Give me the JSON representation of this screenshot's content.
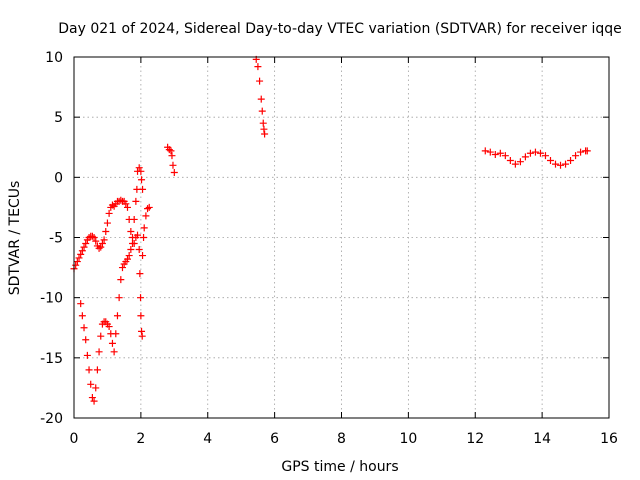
{
  "chart_data": {
    "type": "scatter",
    "title": "Day 021 of 2024, Sidereal Day-to-day VTEC variation (SDTVAR) for receiver iqqe",
    "xlabel": "GPS time / hours",
    "ylabel": "SDTVAR / TECUs",
    "xlim": [
      0,
      16
    ],
    "ylim": [
      -20,
      10
    ],
    "xticks": [
      0,
      2,
      4,
      6,
      8,
      10,
      12,
      14,
      16
    ],
    "yticks": [
      -20,
      -15,
      -10,
      -5,
      0,
      5,
      10
    ],
    "grid": true,
    "marker": "+",
    "color": "#ff0000",
    "series": [
      {
        "name": "seg1",
        "points": [
          [
            0.0,
            -7.6
          ],
          [
            0.05,
            -7.3
          ],
          [
            0.1,
            -7.0
          ],
          [
            0.15,
            -6.7
          ],
          [
            0.2,
            -6.4
          ],
          [
            0.25,
            -6.1
          ],
          [
            0.3,
            -5.8
          ],
          [
            0.35,
            -5.5
          ],
          [
            0.4,
            -5.2
          ],
          [
            0.45,
            -5.0
          ],
          [
            0.5,
            -4.9
          ],
          [
            0.55,
            -4.9
          ],
          [
            0.6,
            -5.0
          ],
          [
            0.65,
            -5.3
          ],
          [
            0.7,
            -5.7
          ],
          [
            0.75,
            -5.9
          ],
          [
            0.8,
            -5.8
          ],
          [
            0.85,
            -5.5
          ],
          [
            0.9,
            -5.2
          ],
          [
            0.95,
            -4.5
          ],
          [
            1.0,
            -3.8
          ],
          [
            1.05,
            -3.0
          ],
          [
            1.1,
            -2.5
          ],
          [
            1.15,
            -2.3
          ],
          [
            1.2,
            -2.4
          ],
          [
            1.25,
            -2.2
          ],
          [
            1.3,
            -2.0
          ],
          [
            1.35,
            -2.0
          ],
          [
            1.4,
            -1.9
          ],
          [
            1.45,
            -2.0
          ],
          [
            1.5,
            -2.0
          ],
          [
            1.55,
            -2.2
          ],
          [
            1.6,
            -2.5
          ],
          [
            1.65,
            -3.5
          ],
          [
            1.7,
            -4.5
          ],
          [
            1.75,
            -5.5
          ]
        ]
      },
      {
        "name": "seg2",
        "points": [
          [
            0.2,
            -10.5
          ],
          [
            0.25,
            -11.5
          ],
          [
            0.3,
            -12.5
          ],
          [
            0.35,
            -13.5
          ],
          [
            0.4,
            -14.8
          ],
          [
            0.45,
            -16.0
          ],
          [
            0.5,
            -17.2
          ],
          [
            0.55,
            -18.3
          ],
          [
            0.6,
            -18.6
          ],
          [
            0.65,
            -17.5
          ],
          [
            0.7,
            -16.0
          ],
          [
            0.75,
            -14.5
          ],
          [
            0.8,
            -13.2
          ],
          [
            0.85,
            -12.2
          ],
          [
            0.9,
            -12.0
          ],
          [
            0.95,
            -12.0
          ],
          [
            1.0,
            -12.2
          ],
          [
            1.05,
            -12.4
          ],
          [
            1.1,
            -13.0
          ],
          [
            1.15,
            -13.8
          ],
          [
            1.2,
            -14.5
          ],
          [
            1.25,
            -13.0
          ],
          [
            1.3,
            -11.5
          ],
          [
            1.35,
            -10.0
          ],
          [
            1.4,
            -8.5
          ],
          [
            1.45,
            -7.5
          ],
          [
            1.5,
            -7.2
          ],
          [
            1.55,
            -7.0
          ],
          [
            1.6,
            -6.8
          ],
          [
            1.65,
            -6.5
          ],
          [
            1.7,
            -6.0
          ],
          [
            1.75,
            -5.0
          ],
          [
            1.8,
            -3.5
          ],
          [
            1.85,
            -2.0
          ],
          [
            1.88,
            -1.0
          ],
          [
            1.9,
            0.5
          ],
          [
            1.95,
            0.8
          ],
          [
            2.0,
            0.5
          ],
          [
            2.02,
            -0.2
          ],
          [
            2.05,
            -1.0
          ]
        ]
      },
      {
        "name": "seg3",
        "points": [
          [
            1.8,
            -5.5
          ],
          [
            1.85,
            -5.0
          ],
          [
            1.9,
            -4.8
          ],
          [
            1.95,
            -6.0
          ],
          [
            1.97,
            -8.0
          ],
          [
            1.99,
            -10.0
          ],
          [
            2.0,
            -11.5
          ],
          [
            2.02,
            -12.8
          ],
          [
            2.04,
            -13.2
          ],
          [
            2.05,
            -6.5
          ],
          [
            2.08,
            -5.0
          ],
          [
            2.1,
            -4.2
          ],
          [
            2.15,
            -3.2
          ],
          [
            2.2,
            -2.6
          ],
          [
            2.25,
            -2.5
          ]
        ]
      },
      {
        "name": "seg4",
        "points": [
          [
            2.8,
            2.5
          ],
          [
            2.85,
            2.3
          ],
          [
            2.9,
            2.2
          ],
          [
            2.93,
            1.8
          ],
          [
            2.96,
            1.0
          ],
          [
            3.0,
            0.4
          ]
        ]
      },
      {
        "name": "seg5",
        "points": [
          [
            5.45,
            9.8
          ],
          [
            5.5,
            9.2
          ],
          [
            5.55,
            8.0
          ],
          [
            5.6,
            6.5
          ],
          [
            5.63,
            5.5
          ],
          [
            5.66,
            4.5
          ],
          [
            5.68,
            4.0
          ],
          [
            5.7,
            3.6
          ]
        ]
      },
      {
        "name": "seg6",
        "points": [
          [
            12.3,
            2.2
          ],
          [
            12.45,
            2.1
          ],
          [
            12.6,
            1.9
          ],
          [
            12.75,
            2.0
          ],
          [
            12.9,
            1.8
          ],
          [
            13.05,
            1.4
          ],
          [
            13.2,
            1.1
          ],
          [
            13.35,
            1.3
          ],
          [
            13.5,
            1.7
          ],
          [
            13.65,
            2.0
          ],
          [
            13.8,
            2.1
          ],
          [
            13.95,
            2.0
          ],
          [
            14.1,
            1.8
          ],
          [
            14.25,
            1.4
          ],
          [
            14.4,
            1.1
          ],
          [
            14.55,
            1.0
          ],
          [
            14.7,
            1.1
          ],
          [
            14.85,
            1.4
          ],
          [
            15.0,
            1.8
          ],
          [
            15.15,
            2.1
          ],
          [
            15.3,
            2.2
          ],
          [
            15.35,
            2.2
          ]
        ]
      }
    ]
  }
}
